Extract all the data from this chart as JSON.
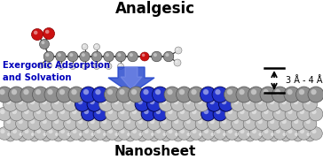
{
  "title_analgesic": "Analgesic",
  "title_nanosheet": "Nanosheet",
  "label_exergonic": "Exergonic Adsorption\nand Solvation",
  "label_distance": "3 Å - 4 Å",
  "bg_color": "#ffffff",
  "gray": "#909090",
  "gray_dark": "#707070",
  "gray_light": "#c0c0c0",
  "red": "#cc1111",
  "blue_atom": "#2233cc",
  "blue_arrow": "#2244cc",
  "text_blue": "#0000bb",
  "bond_color": "#444444",
  "white_atom": "#dddddd",
  "figsize": [
    3.64,
    1.89
  ],
  "dpi": 100
}
